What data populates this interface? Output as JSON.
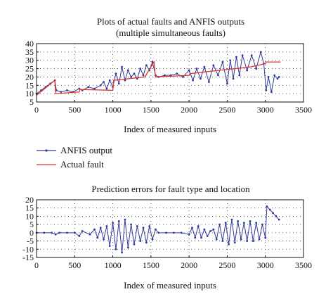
{
  "chart_data": [
    {
      "type": "line",
      "title": "Plots of actual faults and ANFIS outputs",
      "subtitle": "(multiple simultaneous faults)",
      "xlabel": "Index of measured inputs",
      "ylabel": "",
      "xlim": [
        0,
        3500
      ],
      "ylim": [
        5,
        40
      ],
      "xticks": [
        0,
        500,
        1000,
        1500,
        2000,
        2500,
        3000,
        3500
      ],
      "yticks": [
        5,
        10,
        15,
        20,
        25,
        30,
        35,
        40
      ],
      "grid": true,
      "legend": {
        "placement": "below",
        "entries": [
          "ANFIS output",
          "Actual fault"
        ]
      },
      "series": [
        {
          "name": "Actual fault",
          "color": "#e0352b",
          "x": [
            0,
            240,
            250,
            560,
            570,
            1000,
            1010,
            1420,
            1540,
            1560,
            2000,
            2010,
            2200,
            2400,
            2600,
            2800,
            3000,
            3010,
            3200
          ],
          "y": [
            9,
            18,
            10,
            11,
            12.5,
            12,
            18,
            20,
            29,
            20,
            21,
            22,
            23,
            24,
            25,
            26,
            28,
            29,
            29
          ]
        },
        {
          "name": "ANFIS output",
          "color": "#2f3a9a",
          "x": [
            0,
            60,
            120,
            180,
            240,
            260,
            320,
            400,
            480,
            560,
            600,
            680,
            760,
            840,
            880,
            920,
            960,
            1000,
            1040,
            1080,
            1120,
            1160,
            1200,
            1240,
            1280,
            1320,
            1360,
            1400,
            1440,
            1480,
            1520,
            1560,
            1600,
            1680,
            1760,
            1840,
            1920,
            2000,
            2050,
            2100,
            2150,
            2200,
            2260,
            2320,
            2380,
            2440,
            2500,
            2540,
            2580,
            2620,
            2660,
            2700,
            2760,
            2820,
            2880,
            2940,
            2980,
            3010,
            3040,
            3080,
            3120,
            3160,
            3180
          ],
          "y": [
            10,
            12,
            14,
            16,
            18,
            12,
            11,
            12,
            11,
            13,
            12,
            14,
            13,
            15,
            17,
            13,
            18,
            14,
            22,
            16,
            26,
            18,
            24,
            20,
            22,
            19,
            25,
            21,
            27,
            24,
            29,
            21,
            20,
            21,
            21,
            22,
            20,
            24,
            18,
            25,
            19,
            26,
            17,
            27,
            21,
            29,
            16,
            30,
            19,
            32,
            21,
            33,
            24,
            33,
            25,
            35,
            28,
            12,
            20,
            11,
            21,
            19,
            20
          ]
        }
      ]
    },
    {
      "type": "line",
      "title": "Prediction errors for fault type and location",
      "xlabel": "Index of measured inputs",
      "ylabel": "",
      "xlim": [
        0,
        3500
      ],
      "ylim": [
        -15,
        20
      ],
      "xticks": [
        0,
        500,
        1000,
        1500,
        2000,
        2500,
        3000,
        3500
      ],
      "yticks": [
        -15,
        -10,
        -5,
        0,
        5,
        10,
        15,
        20
      ],
      "grid": true,
      "series": [
        {
          "name": "",
          "color": "#2f3a9a",
          "x": [
            0,
            100,
            200,
            250,
            300,
            400,
            500,
            560,
            600,
            700,
            760,
            800,
            840,
            880,
            920,
            960,
            1000,
            1040,
            1080,
            1120,
            1160,
            1200,
            1240,
            1280,
            1320,
            1360,
            1400,
            1440,
            1480,
            1520,
            1560,
            1600,
            1700,
            1800,
            1900,
            2000,
            2040,
            2080,
            2120,
            2160,
            2200,
            2240,
            2280,
            2320,
            2360,
            2400,
            2440,
            2480,
            2520,
            2560,
            2600,
            2640,
            2680,
            2720,
            2760,
            2800,
            2840,
            2880,
            2920,
            2960,
            3000,
            3020,
            3060,
            3100,
            3140,
            3180
          ],
          "y": [
            0,
            0,
            0,
            -1,
            0,
            0,
            0,
            -2,
            1,
            -1,
            2,
            -3,
            3,
            -4,
            4,
            -8,
            6,
            -10,
            7,
            -12,
            8,
            -9,
            5,
            -7,
            4,
            -5,
            3,
            -6,
            4,
            -4,
            2,
            0,
            0,
            0,
            0,
            -1,
            3,
            -3,
            4,
            -3,
            2,
            -2,
            1,
            2,
            -4,
            5,
            -5,
            6,
            -7,
            8,
            -6,
            7,
            -4,
            6,
            -5,
            7,
            -5,
            6,
            -4,
            5,
            -3,
            16,
            14,
            12,
            10,
            8
          ]
        }
      ]
    }
  ]
}
